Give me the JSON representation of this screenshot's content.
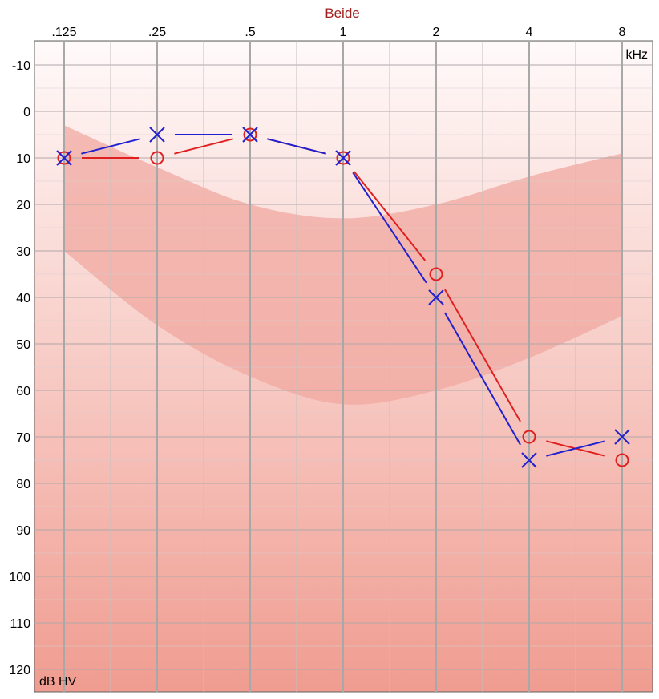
{
  "chart_data": {
    "type": "line",
    "title": "Beide",
    "x_unit_label": "kHz",
    "y_unit_label": "dB HV",
    "x_ticks": [
      {
        "value": 0.125,
        "label": ".125"
      },
      {
        "value": 0.25,
        "label": ".25"
      },
      {
        "value": 0.5,
        "label": ".5"
      },
      {
        "value": 1,
        "label": "1"
      },
      {
        "value": 2,
        "label": "2"
      },
      {
        "value": 4,
        "label": "4"
      },
      {
        "value": 8,
        "label": "8"
      }
    ],
    "x_scale": "log2",
    "y_ticks": [
      -10,
      0,
      10,
      20,
      30,
      40,
      50,
      60,
      70,
      80,
      90,
      100,
      110,
      120
    ],
    "ylim": [
      -15,
      125
    ],
    "y_inverted": true,
    "grid": true,
    "series": [
      {
        "marker": "circle",
        "color": "#e02020",
        "points": [
          {
            "x": 0.125,
            "y": 10
          },
          {
            "x": 0.25,
            "y": 10
          },
          {
            "x": 0.5,
            "y": 5
          },
          {
            "x": 1,
            "y": 10
          },
          {
            "x": 2,
            "y": 35
          },
          {
            "x": 4,
            "y": 70
          },
          {
            "x": 8,
            "y": 75
          }
        ]
      },
      {
        "marker": "cross",
        "color": "#2020d0",
        "points": [
          {
            "x": 0.125,
            "y": 10
          },
          {
            "x": 0.25,
            "y": 5
          },
          {
            "x": 0.5,
            "y": 5
          },
          {
            "x": 1,
            "y": 10
          },
          {
            "x": 2,
            "y": 40
          },
          {
            "x": 4,
            "y": 75
          },
          {
            "x": 8,
            "y": 70
          }
        ]
      }
    ],
    "shaded_band": {
      "color": "#f0a8a0",
      "upper": [
        {
          "x": 0.125,
          "y": 3
        },
        {
          "x": 0.25,
          "y": 12
        },
        {
          "x": 0.5,
          "y": 20
        },
        {
          "x": 1,
          "y": 23
        },
        {
          "x": 2,
          "y": 20
        },
        {
          "x": 4,
          "y": 14
        },
        {
          "x": 8,
          "y": 9
        }
      ],
      "lower": [
        {
          "x": 0.125,
          "y": 30
        },
        {
          "x": 0.25,
          "y": 46
        },
        {
          "x": 0.5,
          "y": 57
        },
        {
          "x": 1,
          "y": 63
        },
        {
          "x": 2,
          "y": 60
        },
        {
          "x": 4,
          "y": 53
        },
        {
          "x": 8,
          "y": 44
        }
      ]
    }
  }
}
